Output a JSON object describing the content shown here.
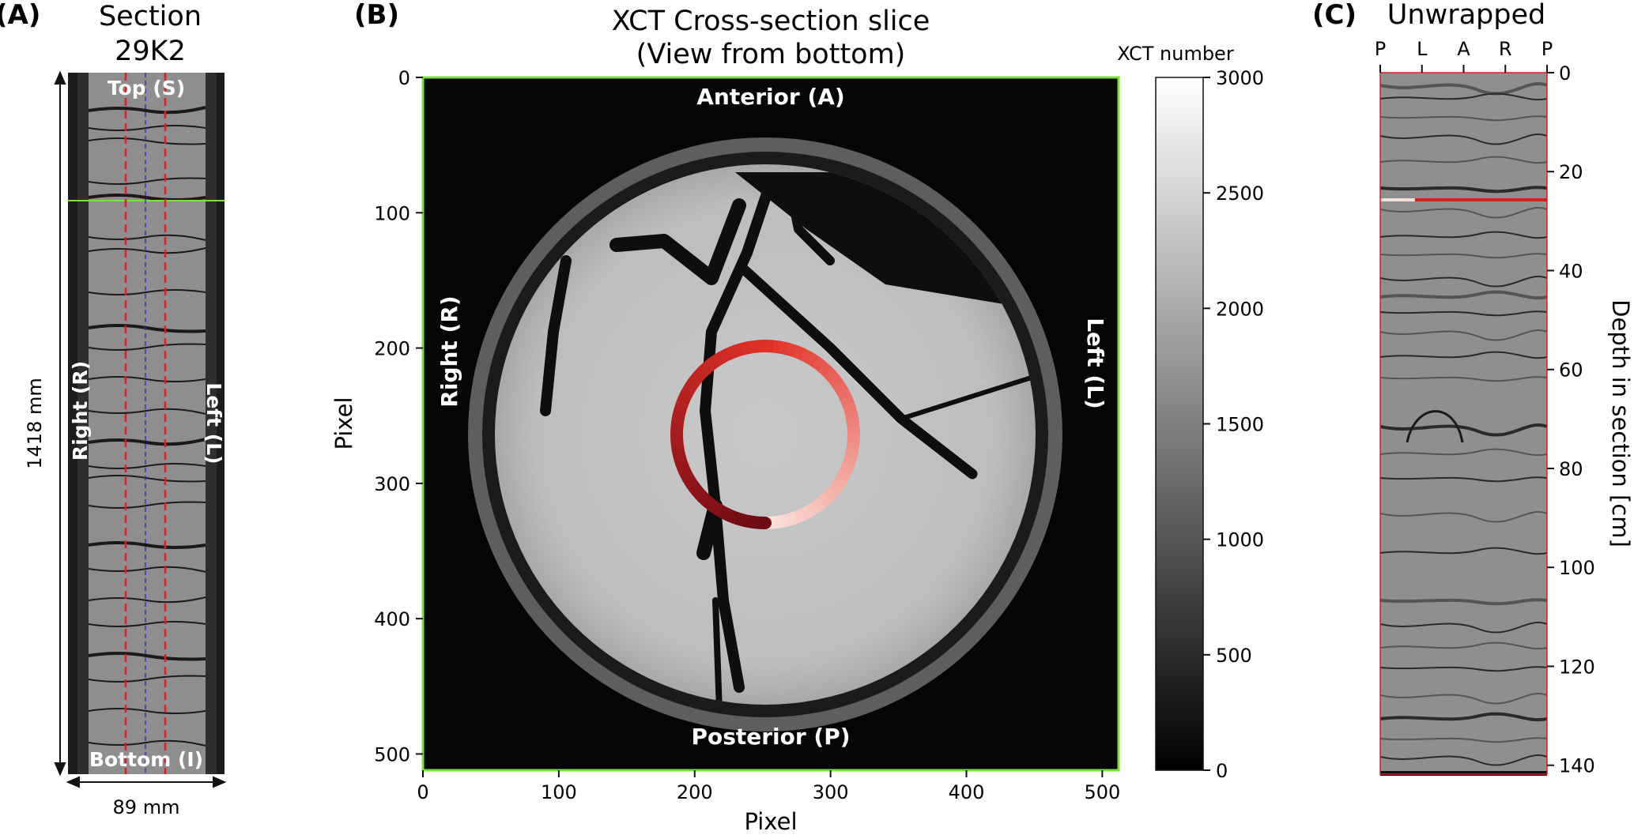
{
  "panel_a": {
    "label": "(A)",
    "title_line1": "Section",
    "title_line2": "29K2",
    "top_label": "Top (S)",
    "bottom_label": "Bottom (I)",
    "right_label": "Right (R)",
    "left_label": "Left (L)",
    "height_label": "1418 mm",
    "width_label": "89 mm"
  },
  "panel_b": {
    "label": "(B)",
    "title_line1": "XCT Cross-section slice",
    "title_line2": "(View from bottom)",
    "anterior_label": "Anterior (A)",
    "posterior_label": "Posterior (P)",
    "right_label": "Right (R)",
    "left_label": "Left (L)",
    "xlabel": "Pixel",
    "ylabel": "Pixel",
    "x_ticks": [
      "0",
      "100",
      "200",
      "300",
      "400",
      "500"
    ],
    "y_ticks": [
      "0",
      "100",
      "200",
      "300",
      "400",
      "500"
    ],
    "colorbar_title": "XCT number",
    "colorbar_ticks": [
      "0",
      "500",
      "1000",
      "1500",
      "2000",
      "2500",
      "3000"
    ]
  },
  "panel_c": {
    "label": "(C)",
    "title": "Unwrapped",
    "top_ticks": [
      "P",
      "L",
      "A",
      "R",
      "P"
    ],
    "depth_ticks": [
      "0",
      "20",
      "40",
      "60",
      "80",
      "100",
      "120",
      "140"
    ],
    "ylabel": "Depth in section [cm]"
  },
  "chart_data": {
    "type": "heatmap",
    "colormap": "gray",
    "x_range": [
      0,
      512
    ],
    "y_range": [
      0,
      512
    ],
    "colorbar_range": [
      0,
      3000
    ],
    "colors": {
      "slice_frame": "#7ee03a",
      "sample_path": "#d0231f",
      "guide_line": "#e01c1c",
      "centre_line": "#3030d0"
    }
  }
}
